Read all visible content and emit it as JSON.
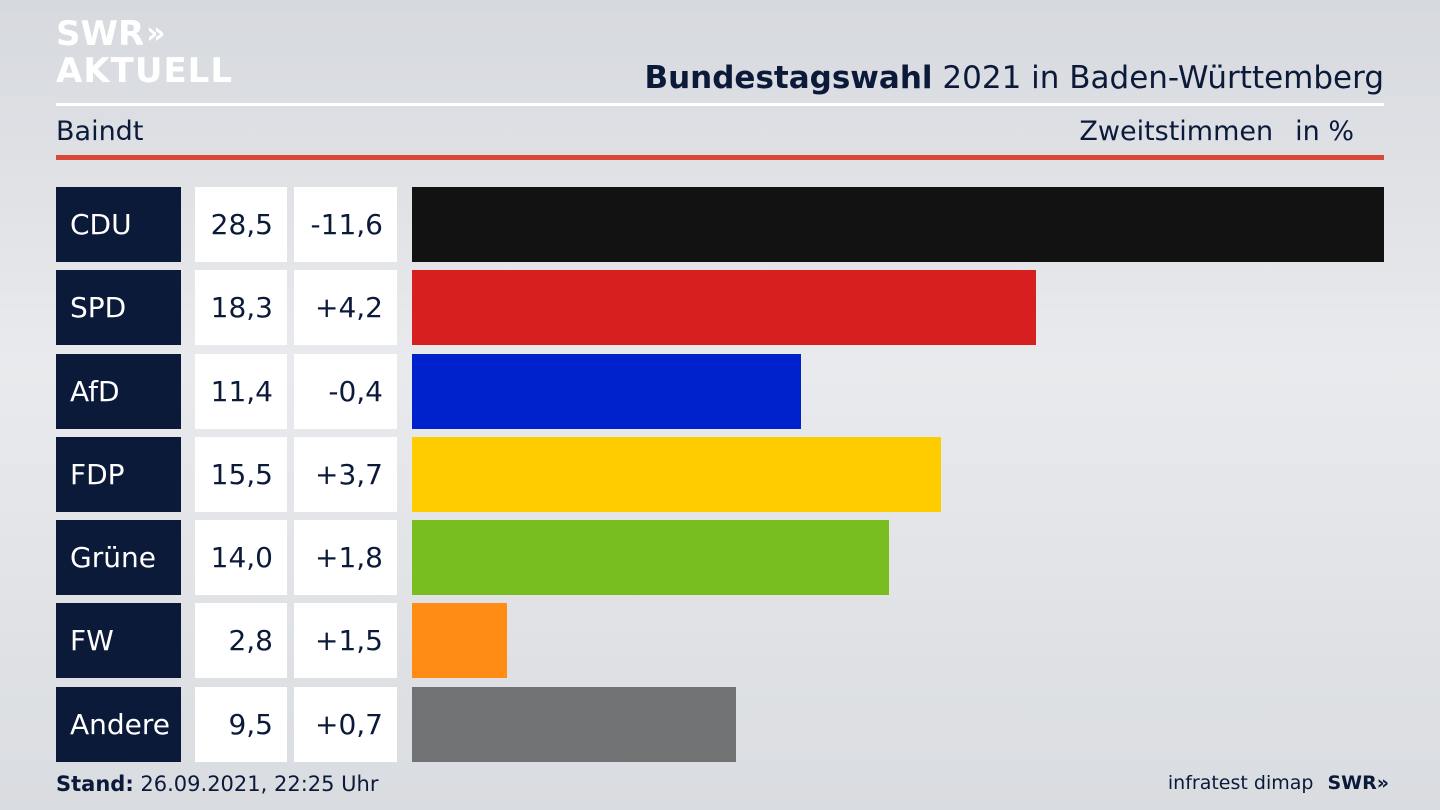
{
  "logo": {
    "line1": "SWR",
    "line1_arrows": "»",
    "line2": "AKTUELL"
  },
  "header": {
    "title_bold": "Bundestagswahl",
    "title_rest": " 2021 in Baden-Württemberg",
    "location": "Baindt",
    "measure": "Zweitstimmen",
    "unit": "in %"
  },
  "chart_data": {
    "type": "bar",
    "orientation": "horizontal",
    "title": "Bundestagswahl 2021 in Baden-Württemberg",
    "categories": [
      "CDU",
      "SPD",
      "AfD",
      "FDP",
      "Grüne",
      "FW",
      "Andere"
    ],
    "values": [
      28.5,
      18.3,
      11.4,
      15.5,
      14.0,
      2.8,
      9.5
    ],
    "value_labels": [
      "28,5",
      "18,3",
      "11,4",
      "15,5",
      "14,0",
      "2,8",
      "9,5"
    ],
    "diff_labels": [
      "-11,6",
      "+4,2",
      "-0,4",
      "+3,7",
      "+1,8",
      "+1,5",
      "+0,7"
    ],
    "colors": [
      "#121212",
      "#d81f1f",
      "#0022cc",
      "#ffcc00",
      "#78be1e",
      "#ff8c14",
      "#717274"
    ],
    "xlim": [
      0,
      28.5
    ]
  },
  "footer": {
    "stand_label": "Stand:",
    "stand_value": " 26.09.2021, 22:25 Uhr",
    "source": "infratest dimap",
    "brand": "SWR",
    "brand_arrows": "»"
  }
}
